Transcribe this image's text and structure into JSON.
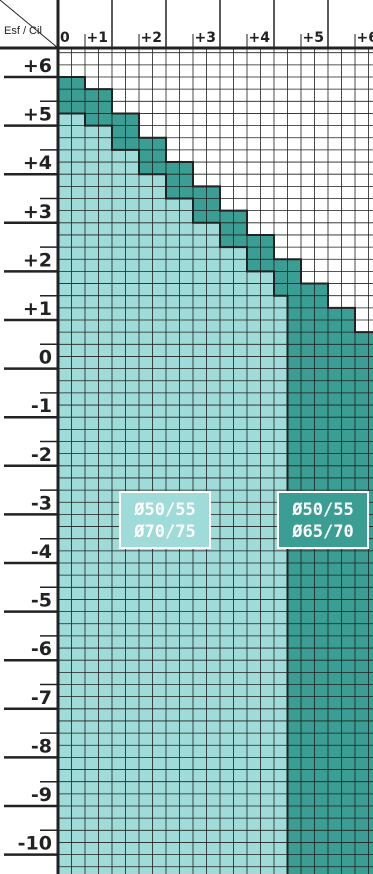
{
  "chart_data": {
    "type": "heatmap",
    "corner_label": "Esf / Cil",
    "x_ticks": [
      "0",
      "+1",
      "+2",
      "+3",
      "+4",
      "+5",
      "+6"
    ],
    "y_ticks": [
      "+6",
      "+5",
      "+4",
      "+3",
      "+2",
      "+1",
      "0",
      "-1",
      "-2",
      "-3",
      "-4",
      "-5",
      "-6",
      "-7",
      "-8",
      "-9",
      "-10"
    ],
    "x_range": [
      0,
      6
    ],
    "y_range": [
      -10,
      6
    ],
    "step": 0.25,
    "grid": true,
    "zones": [
      {
        "name": "light",
        "lines": [
          "Ø50/55",
          "Ø70/75"
        ],
        "color": "#9fdbd9",
        "boundary": [
          [
            0,
            5.25
          ],
          [
            0.5,
            5.0
          ],
          [
            1.0,
            4.5
          ],
          [
            1.5,
            4.0
          ],
          [
            2.0,
            3.5
          ],
          [
            2.5,
            3.0
          ],
          [
            3.0,
            2.5
          ],
          [
            3.5,
            2.0
          ],
          [
            4.0,
            1.5
          ],
          [
            4.25,
            1.25
          ]
        ]
      },
      {
        "name": "dark",
        "lines": [
          "Ø50/55",
          "Ø65/70"
        ],
        "color": "#3a9e94",
        "boundary": [
          [
            0,
            6.0
          ],
          [
            0.5,
            5.75
          ],
          [
            1.0,
            5.25
          ],
          [
            1.5,
            4.75
          ],
          [
            2.0,
            4.25
          ],
          [
            2.5,
            3.75
          ],
          [
            3.0,
            3.25
          ],
          [
            3.5,
            2.75
          ],
          [
            4.0,
            2.25
          ],
          [
            4.5,
            1.75
          ],
          [
            5.0,
            1.25
          ],
          [
            5.5,
            0.75
          ],
          [
            6.0,
            0.25
          ]
        ]
      }
    ],
    "colors": {
      "axis": "#222222",
      "grid": "#1f1f1f",
      "label_bg": "#ffffff"
    }
  }
}
